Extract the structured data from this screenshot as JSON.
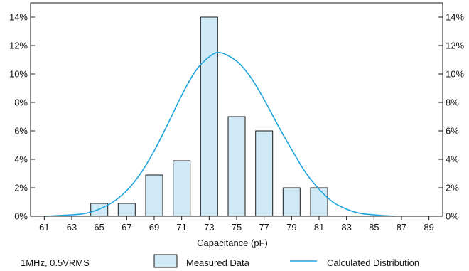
{
  "chart_data": {
    "type": "bar",
    "xlabel": "Capacitance (pF)",
    "ylabel": "",
    "title": "",
    "x_ticks": [
      61,
      63,
      65,
      67,
      69,
      71,
      73,
      75,
      77,
      79,
      81,
      83,
      85,
      87,
      89
    ],
    "xlim": [
      60,
      90
    ],
    "ylim": [
      0,
      15
    ],
    "y_ticks": [
      0,
      2,
      4,
      6,
      8,
      10,
      12,
      14
    ],
    "y_tick_labels": [
      "0%",
      "2%",
      "4%",
      "6%",
      "8%",
      "10%",
      "12%",
      "14%"
    ],
    "grid": false,
    "series": [
      {
        "name": "Measured Data",
        "kind": "bar",
        "x": [
          65,
          67,
          69,
          71,
          73,
          75,
          77,
          79,
          81
        ],
        "values": [
          0.9,
          0.9,
          2.9,
          3.9,
          14.0,
          7.0,
          6.0,
          2.0,
          2.0
        ]
      },
      {
        "name": "Calculated Distribution",
        "kind": "line",
        "x": [
          61,
          63,
          64,
          65,
          66,
          67,
          68,
          69,
          70,
          71,
          72,
          73,
          73.8,
          75,
          76,
          77,
          78,
          79,
          80,
          81,
          82,
          83,
          84,
          85,
          86.5
        ],
        "values": [
          0.0,
          0.1,
          0.2,
          0.5,
          1.0,
          1.8,
          3.0,
          4.6,
          6.5,
          8.5,
          10.2,
          11.2,
          11.5,
          10.9,
          9.8,
          8.2,
          6.4,
          4.7,
          3.1,
          1.9,
          1.0,
          0.5,
          0.2,
          0.1,
          0.0
        ]
      }
    ],
    "colors": {
      "bar_fill": "#cfe9f7",
      "bar_stroke": "#1a1a1a",
      "line": "#1ea4dd",
      "axis": "#1a1a1a"
    }
  },
  "legend": {
    "condition": "1MHz, 0.5VRMS",
    "measured": "Measured Data",
    "calculated": "Calculated Distribution"
  }
}
